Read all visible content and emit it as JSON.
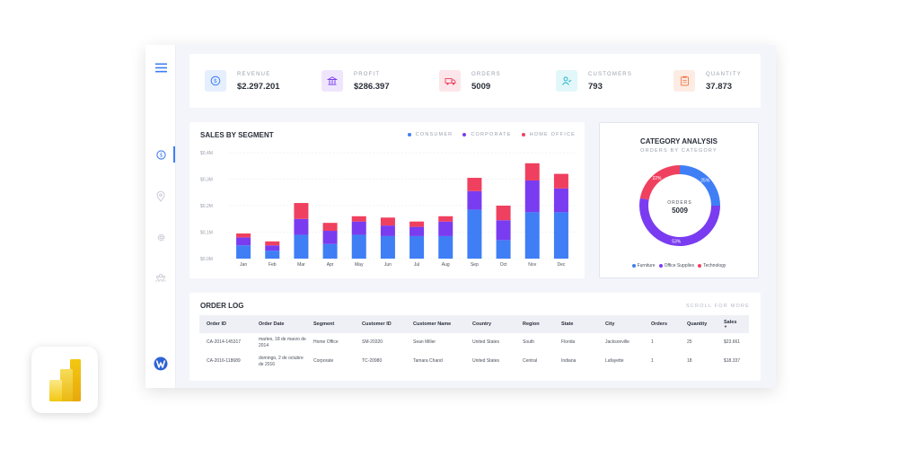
{
  "kpis": [
    {
      "label": "REVENUE",
      "value": "$2.297.201",
      "icon": "dollar-icon",
      "bg": "#e6effd",
      "fg": "#3f7ef5"
    },
    {
      "label": "PROFIT",
      "value": "$286.397",
      "icon": "bank-icon",
      "bg": "#efe6fd",
      "fg": "#7a3cf0"
    },
    {
      "label": "ORDERS",
      "value": "5009",
      "icon": "truck-icon",
      "bg": "#fde6ea",
      "fg": "#f0405f"
    },
    {
      "label": "CUSTOMERS",
      "value": "793",
      "icon": "user-icon",
      "bg": "#e2f7f9",
      "fg": "#1fb3c9"
    },
    {
      "label": "QUANTITY",
      "value": "37.873",
      "icon": "clipboard-icon",
      "bg": "#fdece4",
      "fg": "#f07a45"
    }
  ],
  "sales": {
    "title": "SALES BY SEGMENT",
    "legend": [
      "CONSUMER",
      "CORPORATE",
      "HOME OFFICE"
    ]
  },
  "chart_data": [
    {
      "type": "bar",
      "stacked": true,
      "title": "SALES BY SEGMENT",
      "categories": [
        "Jan",
        "Feb",
        "Mar",
        "Apr",
        "May",
        "Jun",
        "Jul",
        "Aug",
        "Sep",
        "Oct",
        "Nov",
        "Dec"
      ],
      "series": [
        {
          "name": "CONSUMER",
          "color": "#3f7ef5",
          "values": [
            0.05,
            0.03,
            0.09,
            0.055,
            0.09,
            0.085,
            0.085,
            0.085,
            0.185,
            0.07,
            0.175,
            0.175
          ]
        },
        {
          "name": "CORPORATE",
          "color": "#7a3cf0",
          "values": [
            0.03,
            0.02,
            0.06,
            0.05,
            0.05,
            0.04,
            0.035,
            0.055,
            0.07,
            0.075,
            0.12,
            0.09
          ]
        },
        {
          "name": "HOME OFFICE",
          "color": "#f0405f",
          "values": [
            0.015,
            0.015,
            0.06,
            0.03,
            0.02,
            0.03,
            0.02,
            0.02,
            0.05,
            0.055,
            0.065,
            0.055
          ]
        }
      ],
      "yticks": [
        "$0,0M",
        "$0,1M",
        "$0,2M",
        "$0,3M",
        "$0,4M"
      ],
      "ylim": [
        0,
        0.4
      ],
      "grid": true,
      "legend_position": "top-right"
    },
    {
      "type": "pie",
      "donut": true,
      "title": "CATEGORY ANALYSIS",
      "subtitle": "ORDERS BY CATEGORY",
      "center_label": "ORDERS",
      "center_value": "5009",
      "slices": [
        {
          "name": "Furniture",
          "value": 25,
          "label": "25%",
          "color": "#3f7ef5"
        },
        {
          "name": "Office Supplies",
          "value": 53,
          "label": "53%",
          "color": "#7a3cf0"
        },
        {
          "name": "Technology",
          "value": 22,
          "label": "22%",
          "color": "#f0405f"
        }
      ],
      "legend_position": "bottom"
    }
  ],
  "category": {
    "title": "CATEGORY ANALYSIS",
    "subtitle": "ORDERS BY CATEGORY",
    "center_label": "ORDERS",
    "center_value": "5009",
    "legend": [
      "Furniture",
      "Office Supplies",
      "Technology"
    ]
  },
  "orders": {
    "title": "ORDER LOG",
    "scroll_hint": "SCROLL FOR MORE",
    "columns": [
      "Order ID",
      "Order Date",
      "Segment",
      "Customer ID",
      "Customer Name",
      "Country",
      "Region",
      "State",
      "City",
      "Orders",
      "Quantity",
      "Sales"
    ],
    "rows": [
      [
        "CA-2014-145317",
        "martes, 18 de marzo de 2014",
        "Home Office",
        "SM-20320",
        "Sean Miller",
        "United States",
        "South",
        "Florida",
        "Jacksonville",
        "1",
        "25",
        "$23.661"
      ],
      [
        "CA-2016-118689",
        "domingo, 2 de octubre de 2016",
        "Corporate",
        "TC-20980",
        "Tamara Chand",
        "United States",
        "Central",
        "Indiana",
        "Lafayette",
        "1",
        "18",
        "$18.337"
      ]
    ]
  }
}
